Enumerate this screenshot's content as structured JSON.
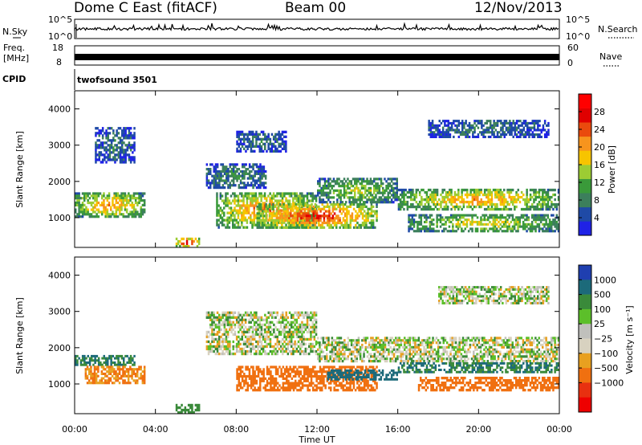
{
  "header": {
    "station": "Dome C East (fitACF)",
    "beam": "Beam 00",
    "date": "12/Nov/2013"
  },
  "strip_panels": {
    "nsky": {
      "label": "N.Sky",
      "ticks_left": [
        "10^5",
        "10^0"
      ],
      "right_label": "N.Search",
      "ticks_right": [
        "10^5",
        "10^0"
      ]
    },
    "freq": {
      "label_line1": "Freq.",
      "label_line2": "[MHz]",
      "ticks_left": [
        "18",
        "8"
      ],
      "right_label": "Nave",
      "ticks_right": [
        "60",
        "0"
      ]
    },
    "cpid": {
      "label": "CPID",
      "program": "twofsound 3501"
    }
  },
  "colors": {
    "power": [
      "#1f22e6",
      "#1f4aa6",
      "#3c7f5c",
      "#3a9a3a",
      "#9ccc33",
      "#f7c400",
      "#f7941d",
      "#ea4a0d",
      "#e00000",
      "#ff0000"
    ],
    "velocity": [
      "#1f3fb0",
      "#1c6a7a",
      "#3a8a3a",
      "#5cbf2a",
      "#c0c0bc",
      "#d8d2c0",
      "#e8a020",
      "#f07010",
      "#e83010",
      "#ee0000"
    ]
  },
  "chart_data": [
    {
      "type": "heatmap",
      "name": "power",
      "xlabel": "",
      "ylabel": "Slant Range [km]",
      "ylim": [
        180,
        4500
      ],
      "y_ticks": [
        "1000",
        "2000",
        "3000",
        "4000"
      ],
      "x_range_hours": [
        0,
        24
      ],
      "colorbar": {
        "label": "Power [dB]",
        "range": [
          0,
          32
        ],
        "ticks": [
          "4",
          "8",
          "12",
          "16",
          "20",
          "24",
          "28"
        ]
      },
      "echo_regions": [
        {
          "x0": 0.0,
          "x1": 3.5,
          "y0": 1000,
          "y1": 1700,
          "peak_db": 22
        },
        {
          "x0": 5.0,
          "x1": 6.2,
          "y0": 180,
          "y1": 450,
          "peak_db": 30
        },
        {
          "x0": 6.5,
          "x1": 9.5,
          "y0": 1800,
          "y1": 2500,
          "peak_db": 10
        },
        {
          "x0": 7.0,
          "x1": 12.0,
          "y0": 700,
          "y1": 1700,
          "peak_db": 24
        },
        {
          "x0": 9.0,
          "x1": 15.0,
          "y0": 700,
          "y1": 1400,
          "peak_db": 28
        },
        {
          "x0": 12.0,
          "x1": 16.0,
          "y0": 1400,
          "y1": 2100,
          "peak_db": 16
        },
        {
          "x0": 16.0,
          "x1": 24.0,
          "y0": 1200,
          "y1": 1800,
          "peak_db": 22
        },
        {
          "x0": 16.5,
          "x1": 24.0,
          "y0": 600,
          "y1": 1100,
          "peak_db": 18
        },
        {
          "x0": 17.5,
          "x1": 23.5,
          "y0": 3200,
          "y1": 3700,
          "peak_db": 8
        },
        {
          "x0": 1.0,
          "x1": 3.0,
          "y0": 2500,
          "y1": 3500,
          "peak_db": 8
        },
        {
          "x0": 8.0,
          "x1": 10.5,
          "y0": 2800,
          "y1": 3400,
          "peak_db": 8
        }
      ]
    },
    {
      "type": "heatmap",
      "name": "velocity",
      "xlabel": "Time UT",
      "ylabel": "Slant Range [km]",
      "ylim": [
        180,
        4500
      ],
      "y_ticks": [
        "1000",
        "2000",
        "3000",
        "4000"
      ],
      "x_ticks": [
        "00:00",
        "04:00",
        "08:00",
        "12:00",
        "16:00",
        "20:00",
        "00:00"
      ],
      "x_range_hours": [
        0,
        24
      ],
      "colorbar": {
        "label": "Velocity [m s⁻¹]",
        "ticks": [
          "1000",
          "500",
          "100",
          "25",
          "−25",
          "−100",
          "−500",
          "−1000"
        ]
      },
      "echo_regions": [
        {
          "x0": 0.0,
          "x1": 3.0,
          "y0": 1500,
          "y1": 1800,
          "velocity": 300
        },
        {
          "x0": 0.5,
          "x1": 3.5,
          "y0": 1000,
          "y1": 1500,
          "velocity": -300
        },
        {
          "x0": 5.0,
          "x1": 6.2,
          "y0": 180,
          "y1": 450,
          "velocity": 200
        },
        {
          "x0": 6.5,
          "x1": 12.0,
          "y0": 1800,
          "y1": 3000,
          "velocity": 0
        },
        {
          "x0": 8.0,
          "x1": 15.0,
          "y0": 800,
          "y1": 1500,
          "velocity": -400
        },
        {
          "x0": 12.5,
          "x1": 16.0,
          "y0": 1100,
          "y1": 1400,
          "velocity": 400
        },
        {
          "x0": 12.0,
          "x1": 24.0,
          "y0": 1600,
          "y1": 2300,
          "velocity": 0
        },
        {
          "x0": 16.0,
          "x1": 24.0,
          "y0": 1300,
          "y1": 1600,
          "velocity": 300
        },
        {
          "x0": 17.0,
          "x1": 24.0,
          "y0": 800,
          "y1": 1200,
          "velocity": -400
        },
        {
          "x0": 18.0,
          "x1": 23.5,
          "y0": 3200,
          "y1": 3700,
          "velocity": 0
        }
      ]
    }
  ]
}
